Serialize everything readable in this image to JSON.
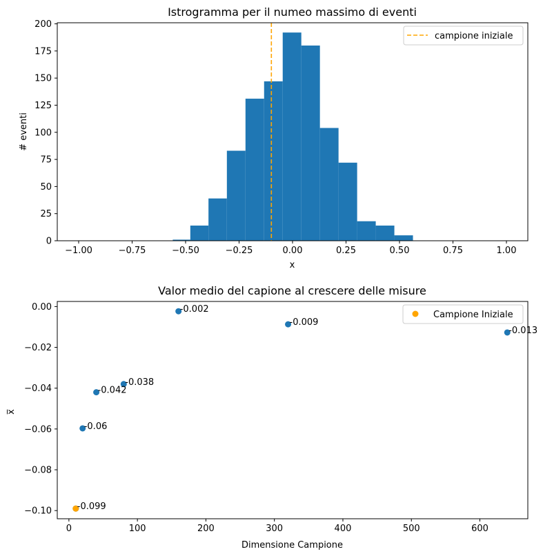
{
  "chart_data": [
    {
      "type": "bar",
      "title": "Istrogramma per il numeo massimo di eventi",
      "xlabel": "x",
      "ylabel": "# eventi",
      "xlim": [
        -1.1,
        1.1
      ],
      "ylim": [
        0,
        201
      ],
      "xticks": [
        -1.0,
        -0.75,
        -0.5,
        -0.25,
        0.0,
        0.25,
        0.5,
        0.75,
        1.0
      ],
      "xtick_labels": [
        "−1.00",
        "−0.75",
        "−0.50",
        "−0.25",
        "0.00",
        "0.25",
        "0.50",
        "0.75",
        "1.00"
      ],
      "yticks": [
        0,
        25,
        50,
        75,
        100,
        125,
        150,
        175,
        200
      ],
      "ytick_labels": [
        "0",
        "25",
        "50",
        "75",
        "100",
        "125",
        "150",
        "175",
        "200"
      ],
      "bins": [
        {
          "x0": -0.56,
          "x1": -0.478,
          "count": 1
        },
        {
          "x0": -0.478,
          "x1": -0.393,
          "count": 14
        },
        {
          "x0": -0.393,
          "x1": -0.307,
          "count": 39
        },
        {
          "x0": -0.307,
          "x1": -0.22,
          "count": 83
        },
        {
          "x0": -0.22,
          "x1": -0.133,
          "count": 131
        },
        {
          "x0": -0.133,
          "x1": -0.046,
          "count": 147
        },
        {
          "x0": -0.046,
          "x1": 0.041,
          "count": 192
        },
        {
          "x0": 0.041,
          "x1": 0.128,
          "count": 180
        },
        {
          "x0": 0.128,
          "x1": 0.215,
          "count": 104
        },
        {
          "x0": 0.215,
          "x1": 0.302,
          "count": 72
        },
        {
          "x0": 0.302,
          "x1": 0.389,
          "count": 18
        },
        {
          "x0": 0.389,
          "x1": 0.476,
          "count": 14
        },
        {
          "x0": 0.476,
          "x1": 0.563,
          "count": 5
        }
      ],
      "bar_color": "#1f77b4",
      "vline": {
        "x": -0.099,
        "color": "#ffa500",
        "style": "dashed",
        "label": "campione iniziale"
      },
      "legend": {
        "position": "top-right",
        "entries": [
          "campione iniziale"
        ]
      }
    },
    {
      "type": "scatter",
      "title": "Valor medio del capione al crescere delle misure",
      "xlabel": "Dimensione Campione",
      "ylabel": "x̅",
      "xlim": [
        -17,
        670
      ],
      "ylim": [
        -0.104,
        0.0025
      ],
      "xticks": [
        0,
        100,
        200,
        300,
        400,
        500,
        600
      ],
      "xtick_labels": [
        "0",
        "100",
        "200",
        "300",
        "400",
        "500",
        "600"
      ],
      "yticks": [
        -0.1,
        -0.08,
        -0.06,
        -0.04,
        -0.02,
        0.0
      ],
      "ytick_labels": [
        "−0.10",
        "−0.08",
        "−0.06",
        "−0.04",
        "−0.02",
        "0.00"
      ],
      "series": [
        {
          "color": "#1f77b4",
          "points": [
            {
              "x": 10,
              "y": -0.099,
              "label": "-0.099"
            },
            {
              "x": 20,
              "y": -0.0597,
              "label": "-0.06"
            },
            {
              "x": 40,
              "y": -0.042,
              "label": "-0.042"
            },
            {
              "x": 80,
              "y": -0.038,
              "label": "-0.038"
            },
            {
              "x": 160,
              "y": -0.0023,
              "label": "-0.002"
            },
            {
              "x": 320,
              "y": -0.0087,
              "label": "-0.009"
            },
            {
              "x": 640,
              "y": -0.0127,
              "label": "-0.013"
            }
          ]
        },
        {
          "name": "Campione Iniziale",
          "color": "#ffa500",
          "points": [
            {
              "x": 10,
              "y": -0.099
            }
          ]
        }
      ],
      "legend": {
        "position": "top-right",
        "entries": [
          "Campione Iniziale"
        ]
      }
    }
  ]
}
